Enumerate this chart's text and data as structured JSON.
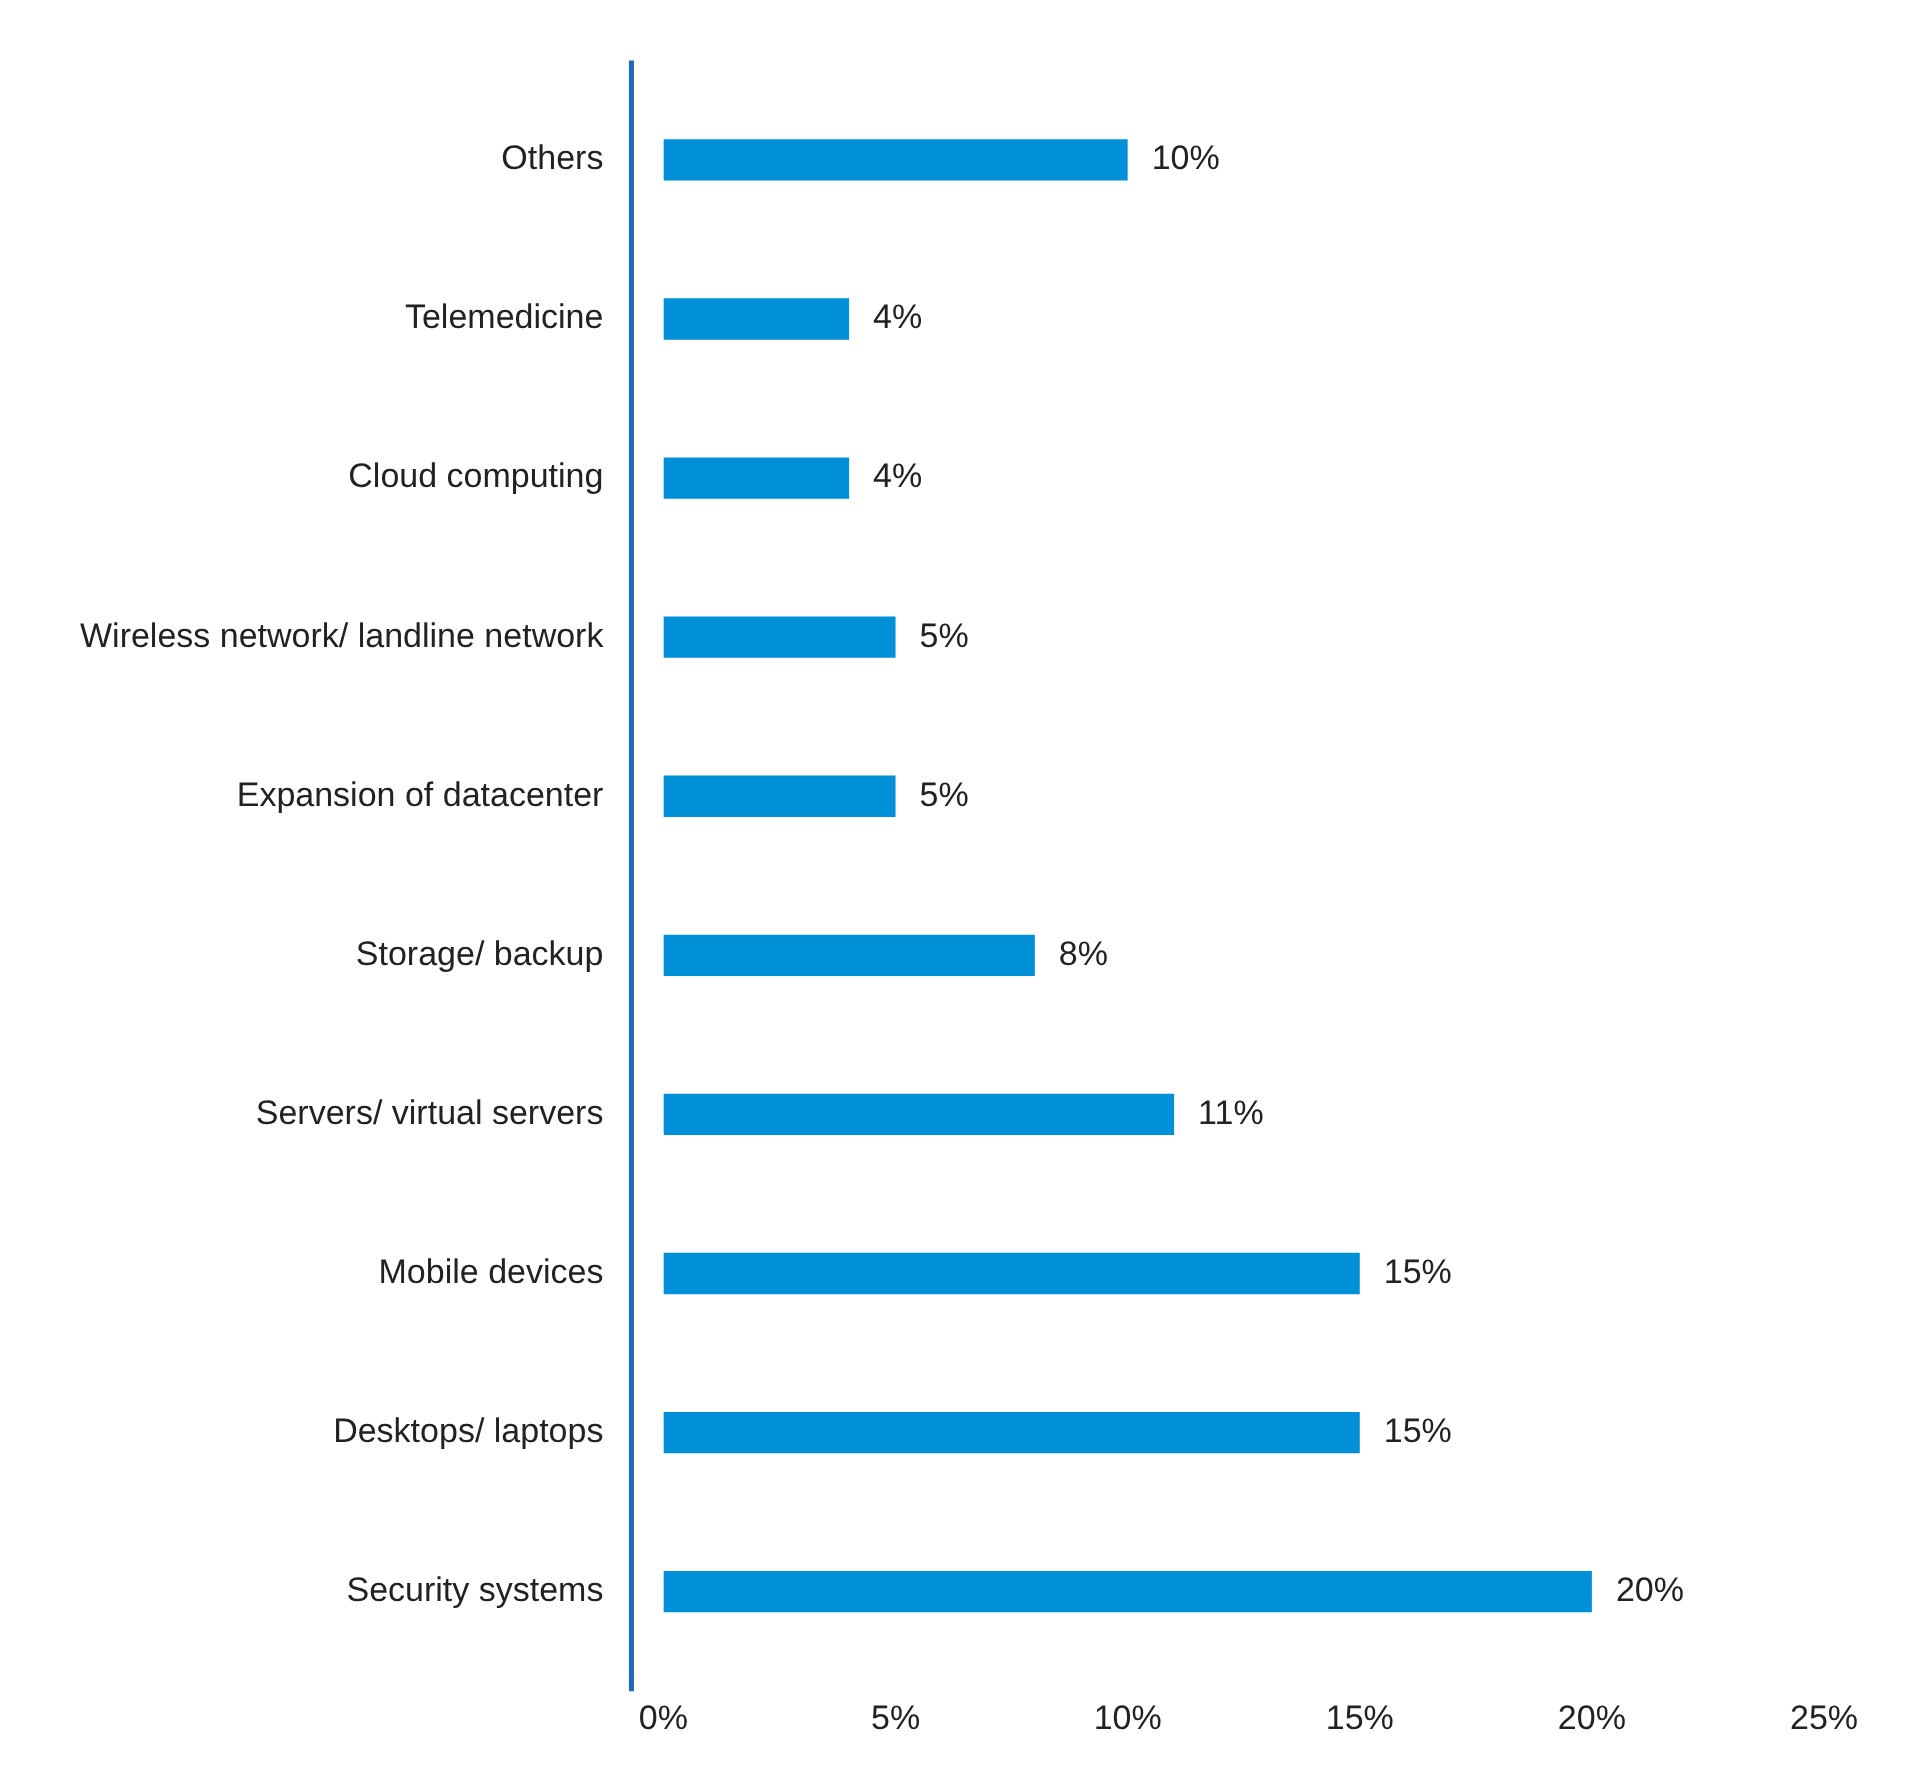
{
  "chart_data": {
    "type": "bar",
    "orientation": "horizontal",
    "categories": [
      "Others",
      "Telemedicine",
      "Cloud computing",
      "Wireless network/ landline network",
      "Expansion of datacenter",
      "Storage/ backup",
      "Servers/ virtual servers",
      "Mobile devices",
      "Desktops/ laptops",
      "Security systems"
    ],
    "values": [
      10,
      4,
      4,
      5,
      5,
      8,
      11,
      15,
      15,
      20
    ],
    "value_labels": [
      "10%",
      "4%",
      "4%",
      "5%",
      "5%",
      "8%",
      "11%",
      "15%",
      "15%",
      "20%"
    ],
    "color": "#0090d8",
    "xlim": [
      0,
      25
    ],
    "xticks": [
      {
        "value": 0,
        "label": "0%"
      },
      {
        "value": 5,
        "label": "5%"
      },
      {
        "value": 10,
        "label": "10%"
      },
      {
        "value": 15,
        "label": "15%"
      },
      {
        "value": 20,
        "label": "20%"
      },
      {
        "value": 25,
        "label": "25%"
      }
    ],
    "grid": false,
    "legend": false
  }
}
